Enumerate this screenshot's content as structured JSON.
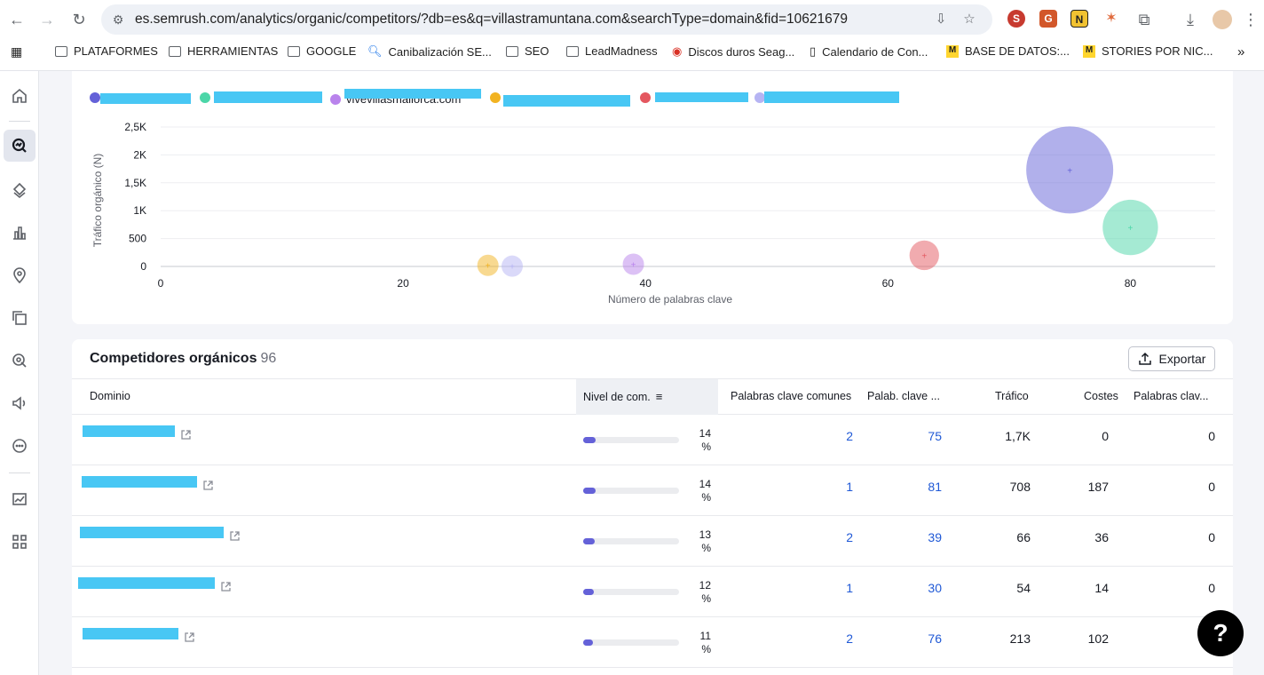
{
  "browser": {
    "url": "es.semrush.com/analytics/organic/competitors/?db=es&q=villastramuntana.com&searchType=domain&fid=10621679",
    "bookmarks": [
      "PLATAFORMES",
      "HERRAMIENTAS",
      "GOOGLE",
      "Canibalización SE...",
      "SEO",
      "LeadMadness",
      "Discos duros Seag...",
      "Calendario de Con...",
      "BASE DE DATOS:...",
      "STORIES POR NIC..."
    ],
    "extensions": [
      "S",
      "G",
      "N",
      "✶"
    ]
  },
  "sidebar": {
    "items": [
      "home-icon",
      "organic-research-icon",
      "layers-icon",
      "bar-chart-icon",
      "location-pin-icon",
      "copy-icon",
      "target-cursor-icon",
      "speaker-icon",
      "chat-icon",
      "trend-chart-icon",
      "apps-grid-icon"
    ]
  },
  "chart": {
    "legend": [
      "",
      "",
      "vivevillasmallorca.com",
      "",
      "",
      ""
    ],
    "colors": {
      "indigo": "#6461d8",
      "teal": "#4cd6a8",
      "purple": "#b983ec",
      "amber": "#f2b321",
      "red": "#e4575f",
      "lavender": "#b6b4f3"
    }
  },
  "chart_data": {
    "type": "scatter",
    "xlabel": "Número de palabras clave",
    "ylabel": "Tráfico orgánico (N)",
    "x_ticks": [
      "0",
      "20",
      "40",
      "60",
      "80"
    ],
    "y_ticks": [
      "0",
      "500",
      "1K",
      "1,5K",
      "2K",
      "2,5K"
    ],
    "xlim": [
      0,
      87
    ],
    "ylim": [
      0,
      2500
    ],
    "series": [
      {
        "color": "#6461d8",
        "points": [
          {
            "x": 75,
            "y": 1730
          }
        ]
      },
      {
        "color": "#4cd6a8",
        "points": [
          {
            "x": 80,
            "y": 700
          }
        ]
      },
      {
        "color": "#b983ec",
        "points": [
          {
            "x": 39,
            "y": 40
          }
        ]
      },
      {
        "color": "#f2b321",
        "points": [
          {
            "x": 27,
            "y": 20
          }
        ]
      },
      {
        "color": "#e4575f",
        "points": [
          {
            "x": 63,
            "y": 200
          }
        ]
      },
      {
        "color": "#b6b4f3",
        "points": [
          {
            "x": 29,
            "y": 5
          }
        ]
      }
    ]
  },
  "table": {
    "title": "Competidores orgánicos",
    "count": "96",
    "export_label": "Exportar",
    "columns": [
      "Dominio",
      "Nivel de com.",
      "Palabras clave comunes",
      "Palab. clave ...",
      "Tráfico",
      "Costes",
      "Palabras clav..."
    ],
    "rows": [
      {
        "domain": "",
        "level": 0.14,
        "level_value": "14",
        "level_unit": "%",
        "common": "2",
        "keywords": "75",
        "traffic": "1,7K",
        "costs": "0",
        "paid": "0"
      },
      {
        "domain": "",
        "level": 0.14,
        "level_value": "14",
        "level_unit": "%",
        "common": "1",
        "keywords": "81",
        "traffic": "708",
        "costs": "187",
        "paid": "0"
      },
      {
        "domain": "",
        "level": 0.13,
        "level_value": "13",
        "level_unit": "%",
        "common": "2",
        "keywords": "39",
        "traffic": "66",
        "costs": "36",
        "paid": "0"
      },
      {
        "domain": "",
        "level": 0.12,
        "level_value": "12",
        "level_unit": "%",
        "common": "1",
        "keywords": "30",
        "traffic": "54",
        "costs": "14",
        "paid": "0"
      },
      {
        "domain": "",
        "level": 0.11,
        "level_value": "11",
        "level_unit": "%",
        "common": "2",
        "keywords": "76",
        "traffic": "213",
        "costs": "102",
        "paid": ""
      }
    ]
  },
  "help": {
    "label": "?"
  }
}
